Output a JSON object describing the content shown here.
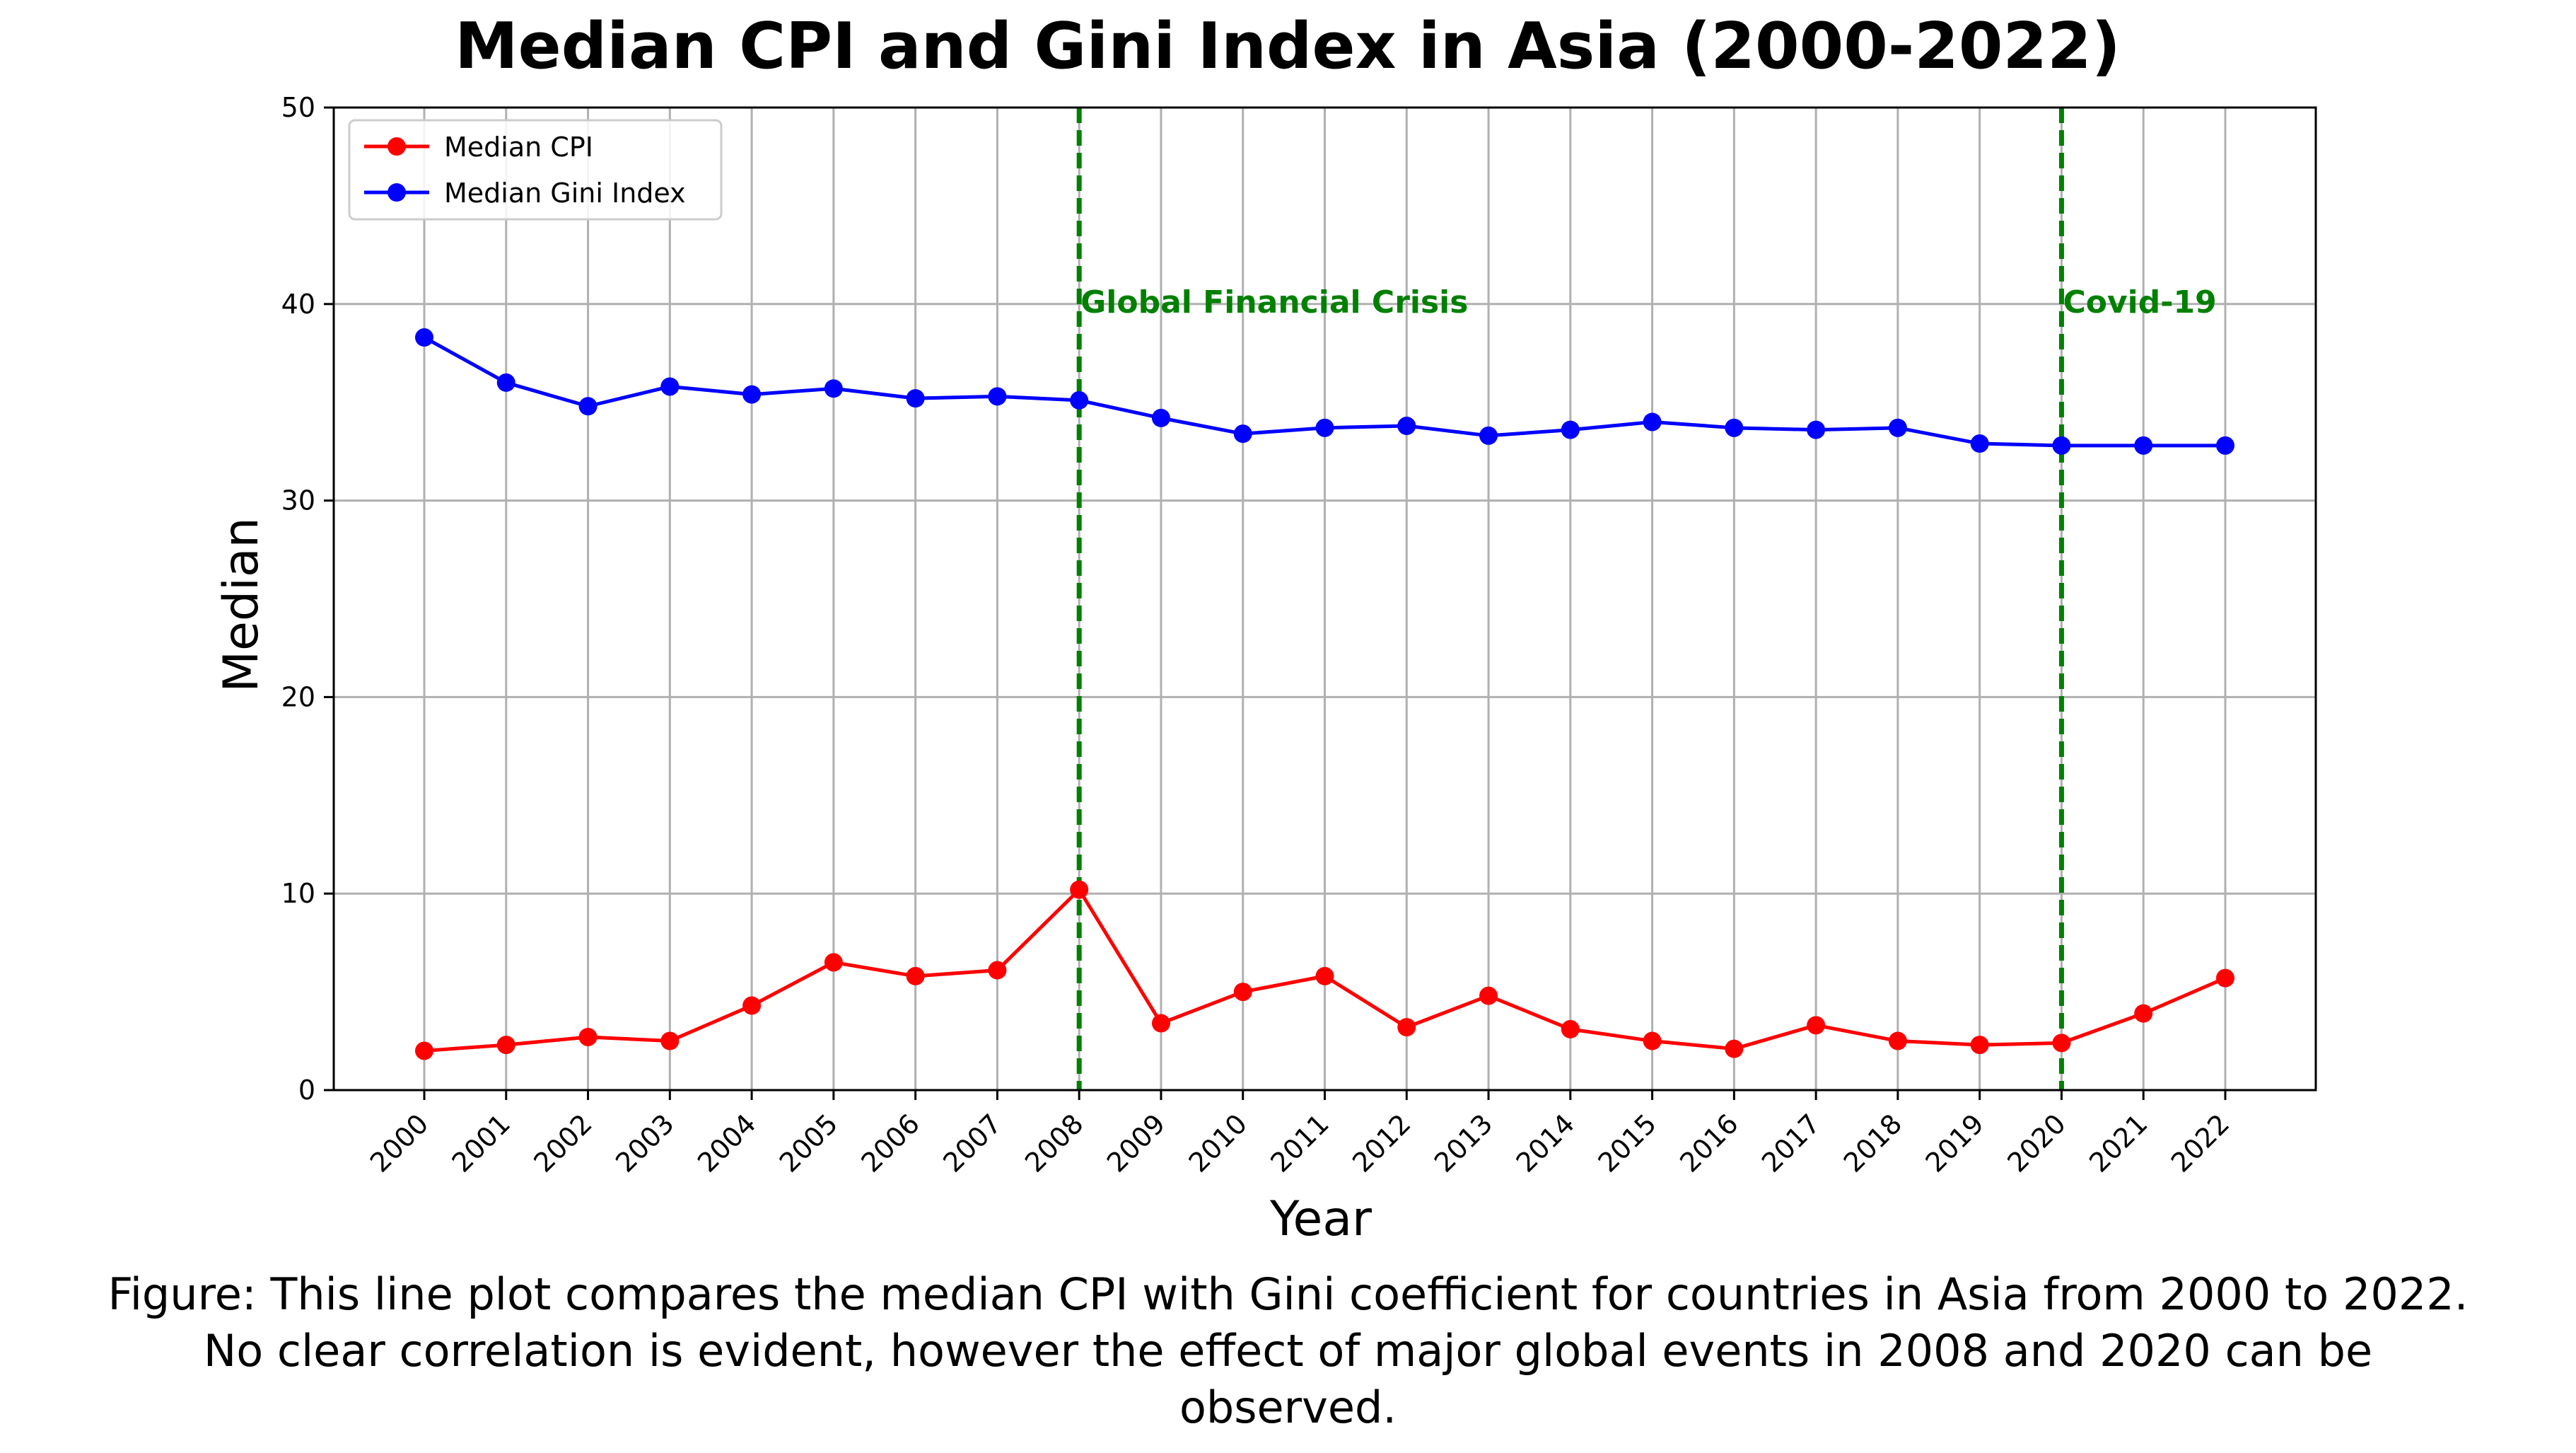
{
  "chart_data": {
    "type": "line",
    "title": "Median CPI and Gini Index in Asia (2000-2022)",
    "xlabel": "Year",
    "ylabel": "Median",
    "ylim": [
      0,
      50
    ],
    "yticks": [
      0,
      10,
      20,
      30,
      40,
      50
    ],
    "grid": true,
    "legend_position": "upper-left",
    "x": [
      2000,
      2001,
      2002,
      2003,
      2004,
      2005,
      2006,
      2007,
      2008,
      2009,
      2010,
      2011,
      2012,
      2013,
      2014,
      2015,
      2016,
      2017,
      2018,
      2019,
      2020,
      2021,
      2022
    ],
    "series": [
      {
        "name": "Median CPI",
        "color": "#ff0000",
        "values": [
          2.0,
          2.3,
          2.7,
          2.5,
          4.3,
          6.5,
          5.8,
          6.1,
          10.2,
          3.4,
          5.0,
          5.8,
          3.2,
          4.8,
          3.1,
          2.5,
          2.1,
          3.3,
          2.5,
          2.3,
          2.4,
          3.9,
          5.7
        ]
      },
      {
        "name": "Median Gini Index",
        "color": "#0000ff",
        "values": [
          38.3,
          36.0,
          34.8,
          35.8,
          35.4,
          35.7,
          35.2,
          35.3,
          35.1,
          34.2,
          33.4,
          33.7,
          33.8,
          33.3,
          33.6,
          34.0,
          33.7,
          33.6,
          33.7,
          32.9,
          32.8,
          32.8,
          32.8
        ]
      }
    ],
    "annotations": [
      {
        "x": 2008,
        "label": "Global Financial Crisis",
        "color": "#008000",
        "y": 40
      },
      {
        "x": 2020,
        "label": "Covid-19",
        "color": "#008000",
        "y": 40
      }
    ]
  },
  "caption": {
    "line1": "Figure: This line plot compares the median CPI with Gini coefficient for countries in Asia from 2000 to 2022.",
    "line2": "No clear correlation is evident, however the effect of major global events in 2008 and 2020 can be",
    "line3": "observed."
  }
}
